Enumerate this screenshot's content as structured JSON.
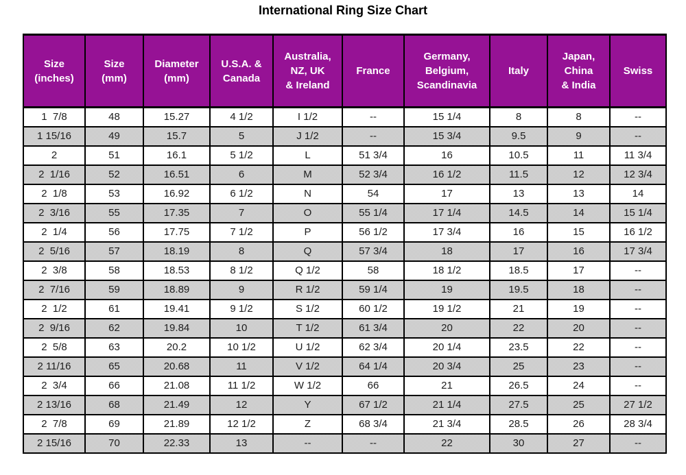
{
  "page": {
    "title": "International Ring Size Chart"
  },
  "colors": {
    "header_background": "#8e0b8e",
    "header_text": "#ffffff",
    "row_white": "#ffffff",
    "row_gray": "#dedede",
    "border": "#000000",
    "body_text": "#1c1c1c"
  },
  "chart_data": {
    "type": "table",
    "title": "International Ring Size Chart",
    "empty_marker": "--",
    "layout": {
      "header_style": "purple background, white bold text",
      "row_striping": "odd rows white, even rows dithered gray",
      "grid": "black 2px borders on all cells"
    },
    "columns": [
      "Size\n(inches)",
      "Size\n(mm)",
      "Diameter\n(mm)",
      "U.S.A. &\nCanada",
      "Australia,\nNZ, UK\n& Ireland",
      "France",
      "Germany,\nBelgium,\nScandinavia",
      "Italy",
      "Japan,\nChina\n& India",
      "Swiss"
    ],
    "column_ids": [
      "size-inches",
      "size-mm",
      "diameter-mm",
      "usa-canada",
      "australia-nz-uk-ireland",
      "france",
      "germany-belgium-scandinavia",
      "italy",
      "japan-china-india",
      "swiss"
    ],
    "rows": [
      [
        "1  7/8",
        "48",
        "15.27",
        "4 1/2",
        "I 1/2",
        "--",
        "15 1/4",
        "8",
        "8",
        "--"
      ],
      [
        "1 15/16",
        "49",
        "15.7",
        "5",
        "J 1/2",
        "--",
        "15 3/4",
        "9.5",
        "9",
        "--"
      ],
      [
        "2",
        "51",
        "16.1",
        "5 1/2",
        "L",
        "51 3/4",
        "16",
        "10.5",
        "11",
        "11 3/4"
      ],
      [
        "2  1/16",
        "52",
        "16.51",
        "6",
        "M",
        "52 3/4",
        "16 1/2",
        "11.5",
        "12",
        "12 3/4"
      ],
      [
        "2  1/8",
        "53",
        "16.92",
        "6 1/2",
        "N",
        "54",
        "17",
        "13",
        "13",
        "14"
      ],
      [
        "2  3/16",
        "55",
        "17.35",
        "7",
        "O",
        "55 1/4",
        "17 1/4",
        "14.5",
        "14",
        "15 1/4"
      ],
      [
        "2  1/4",
        "56",
        "17.75",
        "7 1/2",
        "P",
        "56 1/2",
        "17 3/4",
        "16",
        "15",
        "16 1/2"
      ],
      [
        "2  5/16",
        "57",
        "18.19",
        "8",
        "Q",
        "57 3/4",
        "18",
        "17",
        "16",
        "17 3/4"
      ],
      [
        "2  3/8",
        "58",
        "18.53",
        "8 1/2",
        "Q 1/2",
        "58",
        "18 1/2",
        "18.5",
        "17",
        "--"
      ],
      [
        "2  7/16",
        "59",
        "18.89",
        "9",
        "R 1/2",
        "59 1/4",
        "19",
        "19.5",
        "18",
        "--"
      ],
      [
        "2  1/2",
        "61",
        "19.41",
        "9 1/2",
        "S 1/2",
        "60 1/2",
        "19 1/2",
        "21",
        "19",
        "--"
      ],
      [
        "2  9/16",
        "62",
        "19.84",
        "10",
        "T 1/2",
        "61 3/4",
        "20",
        "22",
        "20",
        "--"
      ],
      [
        "2  5/8",
        "63",
        "20.2",
        "10 1/2",
        "U 1/2",
        "62 3/4",
        "20 1/4",
        "23.5",
        "22",
        "--"
      ],
      [
        "2 11/16",
        "65",
        "20.68",
        "11",
        "V 1/2",
        "64 1/4",
        "20 3/4",
        "25",
        "23",
        "--"
      ],
      [
        "2  3/4",
        "66",
        "21.08",
        "11 1/2",
        "W 1/2",
        "66",
        "21",
        "26.5",
        "24",
        "--"
      ],
      [
        "2 13/16",
        "68",
        "21.49",
        "12",
        "Y",
        "67 1/2",
        "21 1/4",
        "27.5",
        "25",
        "27 1/2"
      ],
      [
        "2  7/8",
        "69",
        "21.89",
        "12 1/2",
        "Z",
        "68 3/4",
        "21 3/4",
        "28.5",
        "26",
        "28 3/4"
      ],
      [
        "2 15/16",
        "70",
        "22.33",
        "13",
        "--",
        "--",
        "22",
        "30",
        "27",
        "--"
      ]
    ]
  }
}
